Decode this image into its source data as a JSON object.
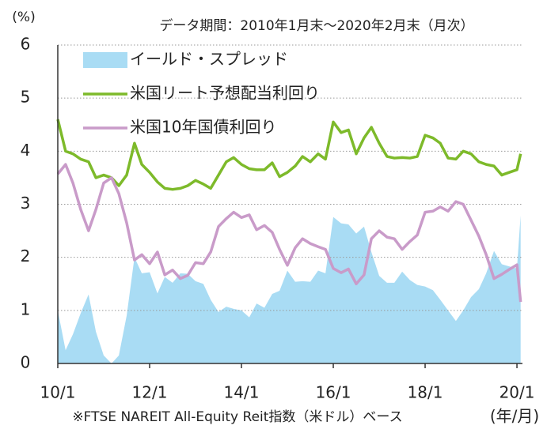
{
  "chart_data": {
    "type": "line",
    "title": "データ期間：2010年1月末～2020年2月末（月次）",
    "y_label": "(%)",
    "x_label": "(年/月)",
    "note": "※FTSE NAREIT All-Equity Reit指数（米ドル）ベース",
    "x": [
      2010,
      2010.17,
      2010.33,
      2010.5,
      2010.67,
      2010.83,
      2011,
      2011.17,
      2011.33,
      2011.5,
      2011.67,
      2011.83,
      2012,
      2012.17,
      2012.33,
      2012.5,
      2012.67,
      2012.83,
      2013,
      2013.17,
      2013.33,
      2013.5,
      2013.67,
      2013.83,
      2014,
      2014.17,
      2014.33,
      2014.5,
      2014.67,
      2014.83,
      2015,
      2015.17,
      2015.33,
      2015.5,
      2015.67,
      2015.83,
      2016,
      2016.17,
      2016.33,
      2016.5,
      2016.67,
      2016.83,
      2017,
      2017.17,
      2017.33,
      2017.5,
      2017.67,
      2017.83,
      2018,
      2018.17,
      2018.33,
      2018.5,
      2018.67,
      2018.83,
      2019,
      2019.17,
      2019.33,
      2019.5,
      2019.67,
      2019.83,
      2020,
      2020.08
    ],
    "series": [
      {
        "name": "イールド・スプレッド",
        "type": "area",
        "color": "#a9dcf4",
        "values": [
          1.0,
          0.25,
          0.55,
          0.95,
          1.3,
          0.6,
          0.15,
          0.0,
          0.15,
          0.9,
          2.0,
          1.7,
          1.72,
          1.32,
          1.63,
          1.52,
          1.7,
          1.69,
          1.55,
          1.5,
          1.2,
          0.97,
          1.07,
          1.03,
          1.0,
          0.87,
          1.13,
          1.05,
          1.31,
          1.37,
          1.75,
          1.54,
          1.55,
          1.54,
          1.75,
          1.7,
          2.76,
          2.64,
          2.62,
          2.45,
          2.58,
          2.1,
          1.65,
          1.52,
          1.52,
          1.73,
          1.57,
          1.48,
          1.45,
          1.38,
          1.2,
          1.0,
          0.8,
          1.0,
          1.25,
          1.4,
          1.7,
          2.12,
          1.87,
          1.83,
          1.79,
          2.79
        ]
      },
      {
        "name": "米国リート予想配当利回り",
        "type": "line",
        "color": "#7dba2a",
        "values": [
          4.6,
          4.0,
          3.95,
          3.85,
          3.8,
          3.5,
          3.55,
          3.5,
          3.35,
          3.55,
          4.15,
          3.75,
          3.6,
          3.42,
          3.3,
          3.28,
          3.3,
          3.35,
          3.45,
          3.38,
          3.3,
          3.55,
          3.8,
          3.88,
          3.75,
          3.67,
          3.65,
          3.65,
          3.78,
          3.52,
          3.6,
          3.72,
          3.9,
          3.8,
          3.95,
          3.85,
          4.55,
          4.35,
          4.4,
          3.95,
          4.25,
          4.45,
          4.15,
          3.9,
          3.87,
          3.88,
          3.87,
          3.9,
          4.3,
          4.25,
          4.15,
          3.87,
          3.85,
          4.0,
          3.95,
          3.8,
          3.75,
          3.72,
          3.55,
          3.6,
          3.65,
          3.95
        ]
      },
      {
        "name": "米国10年国債利回り",
        "type": "line",
        "color": "#c99bc9",
        "values": [
          3.57,
          3.75,
          3.4,
          2.9,
          2.5,
          2.9,
          3.4,
          3.5,
          3.2,
          2.65,
          1.95,
          2.05,
          1.88,
          2.1,
          1.67,
          1.76,
          1.6,
          1.66,
          1.9,
          1.88,
          2.1,
          2.58,
          2.73,
          2.85,
          2.75,
          2.8,
          2.52,
          2.6,
          2.47,
          2.15,
          1.85,
          2.18,
          2.35,
          2.26,
          2.2,
          2.15,
          1.79,
          1.71,
          1.78,
          1.5,
          1.67,
          2.35,
          2.5,
          2.38,
          2.35,
          2.15,
          2.3,
          2.42,
          2.85,
          2.87,
          2.95,
          2.87,
          3.05,
          3.0,
          2.7,
          2.4,
          2.05,
          1.6,
          1.68,
          1.77,
          1.86,
          1.16
        ]
      }
    ],
    "xlim": [
      2010,
      2020.12
    ],
    "xticks": [
      {
        "value": 2010,
        "label": "10/1"
      },
      {
        "value": 2012,
        "label": "12/1"
      },
      {
        "value": 2014,
        "label": "14/1"
      },
      {
        "value": 2016,
        "label": "16/1"
      },
      {
        "value": 2018,
        "label": "18/1"
      },
      {
        "value": 2020,
        "label": "20/1"
      }
    ],
    "ylim": [
      0,
      6
    ],
    "yticks": [
      0,
      1,
      2,
      3,
      4,
      5,
      6
    ],
    "grid": true,
    "legend": "top-left"
  }
}
